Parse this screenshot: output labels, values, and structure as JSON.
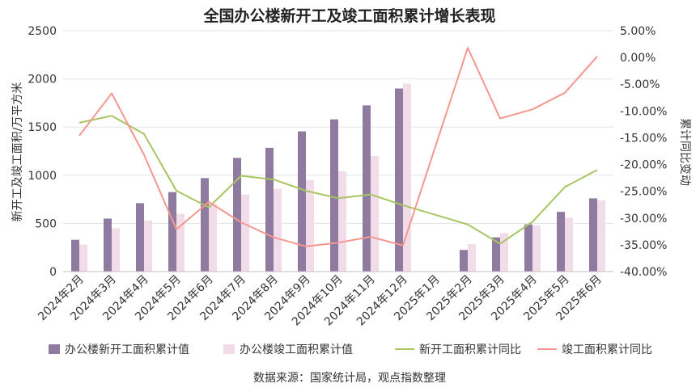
{
  "chart_data": {
    "type": "bar+line",
    "title": "全国办公楼新开工及竣工面积累计增长表现",
    "ylabel_left": "新开工及竣工面积/万平方米",
    "ylabel_right": "累计同比变动",
    "ylim_left": [
      0,
      2500
    ],
    "ylim_right": [
      -40,
      5
    ],
    "left_ticks": [
      "0",
      "500",
      "1000",
      "1500",
      "2000",
      "2500"
    ],
    "right_ticks": [
      "-40.00%",
      "-35.00%",
      "-30.00%",
      "-25.00%",
      "-20.00%",
      "-15.00%",
      "-10.00%",
      "-5.00%",
      "0.00%",
      "5.00%"
    ],
    "categories": [
      "2024年2月",
      "2024年3月",
      "2024年4月",
      "2024年5月",
      "2024年6月",
      "2024年7月",
      "2024年8月",
      "2024年9月",
      "2024年10月",
      "2024年11月",
      "2024年12月",
      "2025年1月",
      "2025年2月",
      "2025年3月",
      "2025年4月",
      "2025年5月",
      "2025年6月"
    ],
    "series": [
      {
        "name": "办公楼新开工面积累计值",
        "kind": "bar",
        "axis": "left",
        "color": "#8f7aa0",
        "values": [
          330,
          550,
          710,
          825,
          970,
          1180,
          1285,
          1455,
          1580,
          1725,
          1900,
          null,
          225,
          355,
          490,
          620,
          760
        ]
      },
      {
        "name": "办公楼竣工面积累计值",
        "kind": "bar",
        "axis": "left",
        "color": "#f3dcea",
        "values": [
          280,
          450,
          530,
          600,
          700,
          800,
          860,
          950,
          1040,
          1200,
          1950,
          null,
          285,
          400,
          480,
          560,
          740
        ]
      },
      {
        "name": "新开工面积累计同比",
        "kind": "line",
        "axis": "right",
        "color": "#a7c561",
        "values": [
          -12.2,
          -10.9,
          -14.3,
          -24.9,
          -28.0,
          -22.1,
          -22.8,
          -24.9,
          -26.3,
          -25.6,
          -27.6,
          null,
          -31.2,
          -34.8,
          -30.7,
          -24.2,
          -21.0
        ]
      },
      {
        "name": "竣工面积累计同比",
        "kind": "line",
        "axis": "right",
        "color": "#f4978e",
        "values": [
          -14.6,
          -6.7,
          -18.2,
          -32.1,
          -27.0,
          -30.8,
          -33.6,
          -35.3,
          -34.6,
          -33.5,
          -35.1,
          null,
          1.8,
          -11.4,
          -9.7,
          -6.6,
          0.2
        ]
      }
    ],
    "source": "数据来源：国家统计局，观点指数整理"
  }
}
